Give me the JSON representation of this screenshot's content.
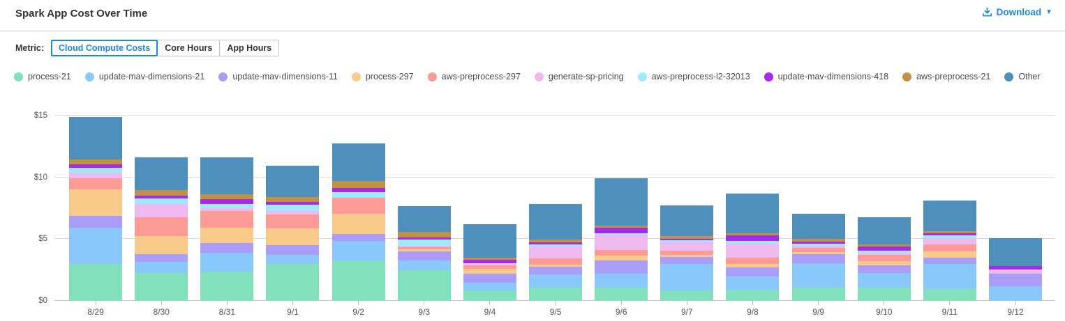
{
  "header": {
    "title": "Spark App Cost Over Time",
    "download_label": "Download",
    "accent_color": "#1E88E5"
  },
  "metric": {
    "label": "Metric:",
    "options": [
      {
        "label": "Cloud Compute Costs",
        "active": true
      },
      {
        "label": "Core Hours",
        "active": false
      },
      {
        "label": "App Hours",
        "active": false
      }
    ]
  },
  "chart_data": {
    "type": "bar",
    "stacked": true,
    "title": "Spark App Cost Over Time",
    "xlabel": "",
    "ylabel": "",
    "ylim": [
      0,
      15.9
    ],
    "yticks": [
      0,
      5,
      10,
      15
    ],
    "ytick_labels": [
      "$0",
      "$5",
      "$10",
      "$15"
    ],
    "grid": true,
    "legend_position": "top",
    "categories": [
      "8/29",
      "8/30",
      "8/31",
      "9/1",
      "9/2",
      "9/3",
      "9/4",
      "9/5",
      "9/6",
      "9/7",
      "9/8",
      "9/9",
      "9/10",
      "9/11",
      "9/12"
    ],
    "series": [
      {
        "name": "process-21",
        "color": "#82E0BC",
        "values": [
          3.0,
          2.25,
          2.35,
          3.0,
          3.25,
          2.5,
          0.85,
          1.1,
          1.1,
          0.85,
          0.9,
          1.05,
          1.1,
          0.95,
          0
        ]
      },
      {
        "name": "update-mav-dimensions-21",
        "color": "#8AC7FB",
        "values": [
          2.9,
          0.9,
          1.55,
          0.7,
          1.6,
          0.8,
          0.6,
          1.05,
          1.1,
          2.15,
          1.1,
          2.0,
          1.15,
          2.05,
          1.2
        ]
      },
      {
        "name": "update-mav-dimensions-11",
        "color": "#AA9DF7",
        "values": [
          1.0,
          0.65,
          0.8,
          0.8,
          0.55,
          0.7,
          0.75,
          0.6,
          1.05,
          0.55,
          0.7,
          0.75,
          0.65,
          0.5,
          1.0
        ]
      },
      {
        "name": "process-297",
        "color": "#F8CB8B",
        "values": [
          2.1,
          1.45,
          1.25,
          1.35,
          1.65,
          0.15,
          0.4,
          0.2,
          0.4,
          0.2,
          0.3,
          0.15,
          0.3,
          0.5,
          0
        ]
      },
      {
        "name": "aws-preprocess-297",
        "color": "#FC9B96",
        "values": [
          0.95,
          1.5,
          1.3,
          1.15,
          1.3,
          0.2,
          0.3,
          0.5,
          0.45,
          0.3,
          0.5,
          0.35,
          0.5,
          0.55,
          0
        ]
      },
      {
        "name": "generate-sp-pricing",
        "color": "#EDB9EF",
        "values": [
          0.45,
          1.1,
          0.25,
          0.3,
          0,
          0.1,
          0.15,
          0.95,
          1.25,
          0.7,
          1.15,
          0.15,
          0.2,
          0.55,
          0.35
        ]
      },
      {
        "name": "aws-preprocess-l2-32013",
        "color": "#A0E9FC",
        "values": [
          0.4,
          0.45,
          0.35,
          0.5,
          0.45,
          0.5,
          0,
          0.2,
          0.15,
          0.15,
          0.2,
          0.15,
          0.15,
          0.2,
          0
        ]
      },
      {
        "name": "update-mav-dimensions-418",
        "color": "#A42BE8",
        "values": [
          0.25,
          0.2,
          0.4,
          0.2,
          0.35,
          0.2,
          0.3,
          0.15,
          0.4,
          0.15,
          0.45,
          0.2,
          0.35,
          0.15,
          0.3
        ]
      },
      {
        "name": "aws-preprocess-21",
        "color": "#C19245",
        "values": [
          0.4,
          0.45,
          0.4,
          0.4,
          0.55,
          0.45,
          0.15,
          0.2,
          0.2,
          0.2,
          0.15,
          0.2,
          0.2,
          0.2,
          0
        ]
      },
      {
        "name": "Other",
        "color": "#4E8FBB",
        "values": [
          3.45,
          2.65,
          3.0,
          2.55,
          3.05,
          2.05,
          2.7,
          2.9,
          3.85,
          2.5,
          3.25,
          2.05,
          2.2,
          2.45,
          2.25
        ]
      }
    ]
  }
}
